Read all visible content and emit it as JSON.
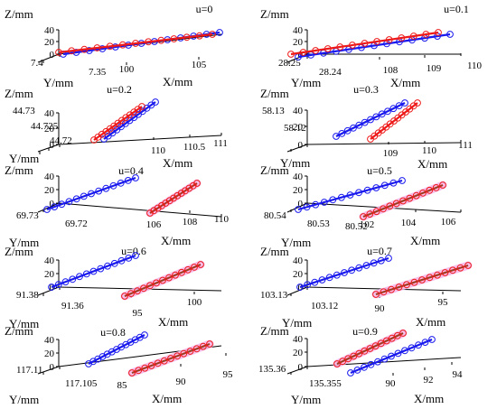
{
  "chart_data": [
    {
      "type": "line3d",
      "title": "u=0",
      "xlabel": "X/mm",
      "ylabel": "Y/mm",
      "zlabel": "Z/mm",
      "x_ticks": [
        "100",
        "105"
      ],
      "y_ticks": [
        "7.4",
        "7.35"
      ],
      "z_ticks": [
        "40",
        "20",
        "0"
      ],
      "series": [
        {
          "color": "#1a1aee",
          "x": [
            97,
            106.5
          ],
          "y": [
            7.375,
            7.375
          ],
          "z": [
            0,
            40
          ]
        },
        {
          "color": "#ee1a1a",
          "x": [
            96,
            106
          ],
          "y": [
            7.4,
            7.4
          ],
          "z": [
            0,
            40
          ]
        }
      ]
    },
    {
      "type": "line3d",
      "title": "u=0.1",
      "xlabel": "X/mm",
      "ylabel": "Y/mm",
      "zlabel": "Z/mm",
      "x_ticks": [
        "108",
        "109",
        "110"
      ],
      "y_ticks": [
        "28.25",
        "28.24"
      ],
      "z_ticks": [
        "40",
        "20",
        "0"
      ],
      "series": [
        {
          "color": "#1a1aee",
          "x": [
            106,
            109
          ],
          "y": [
            28.245,
            28.245
          ],
          "z": [
            0,
            40
          ]
        },
        {
          "color": "#ee1a1a",
          "x": [
            105.5,
            108.5
          ],
          "y": [
            28.25,
            28.25
          ],
          "z": [
            0,
            40
          ]
        }
      ]
    },
    {
      "type": "line3d",
      "title": "u=0.2",
      "xlabel": "X/mm",
      "ylabel": "Y/mm",
      "zlabel": "Z/mm",
      "x_ticks": [
        "110",
        "110.5",
        "111"
      ],
      "y_ticks": [
        "44.73",
        "44.725",
        "44.72"
      ],
      "z_ticks": [
        "40",
        "20",
        "0"
      ],
      "series": [
        {
          "color": "#1a1aee",
          "x": [
            109.9,
            110.5
          ],
          "y": [
            44.722,
            44.722
          ],
          "z": [
            0,
            40
          ]
        },
        {
          "color": "#ee1a1a",
          "x": [
            109.8,
            110.4
          ],
          "y": [
            44.725,
            44.725
          ],
          "z": [
            0,
            40
          ]
        }
      ]
    },
    {
      "type": "line3d",
      "title": "u=0.3",
      "xlabel": "X/mm",
      "ylabel": "Y/mm",
      "zlabel": "Z/mm",
      "x_ticks": [
        "109",
        "110",
        "111"
      ],
      "y_ticks": [
        "58.13",
        "58.12"
      ],
      "z_ticks": [
        "40",
        "20",
        "0"
      ],
      "series": [
        {
          "color": "#1a1aee",
          "x": [
            108,
            109.3
          ],
          "y": [
            58.125,
            58.125
          ],
          "z": [
            0,
            40
          ]
        },
        {
          "color": "#ee1a1a",
          "x": [
            108.6,
            109.9
          ],
          "y": [
            58.12,
            58.12
          ],
          "z": [
            0,
            40
          ]
        }
      ]
    },
    {
      "type": "line3d",
      "title": "u=0.4",
      "xlabel": "X/mm",
      "ylabel": "Y/mm",
      "zlabel": "Z/mm",
      "x_ticks": [
        "106",
        "108",
        "110"
      ],
      "y_ticks": [
        "69.73",
        "69.72"
      ],
      "z_ticks": [
        "40",
        "20",
        "0"
      ],
      "series": [
        {
          "color": "#1a1aee",
          "x": [
            102,
            105.5
          ],
          "y": [
            69.728,
            69.728
          ],
          "z": [
            0,
            40
          ]
        },
        {
          "color": "#ee1a1a",
          "x": [
            105.5,
            108.5
          ],
          "y": [
            69.72,
            69.72
          ],
          "z": [
            0,
            40
          ]
        }
      ]
    },
    {
      "type": "line3d",
      "title": "u=0.5",
      "xlabel": "X/mm",
      "ylabel": "Y/mm",
      "zlabel": "Z/mm",
      "x_ticks": [
        "102",
        "104",
        "106"
      ],
      "y_ticks": [
        "80.54",
        "80.53",
        "80.52"
      ],
      "z_ticks": [
        "40",
        "20",
        "0"
      ],
      "series": [
        {
          "color": "#1a1aee",
          "x": [
            98.5,
            102.5
          ],
          "y": [
            80.535,
            80.535
          ],
          "z": [
            0,
            40
          ]
        },
        {
          "color": "#ee1a1a",
          "x": [
            102,
            106
          ],
          "y": [
            80.52,
            80.52
          ],
          "z": [
            0,
            40
          ]
        }
      ]
    },
    {
      "type": "line3d",
      "title": "u=0.6",
      "xlabel": "X/mm",
      "ylabel": "Y/mm",
      "zlabel": "Z/mm",
      "x_ticks": [
        "95",
        "100"
      ],
      "y_ticks": [
        "91.38",
        "91.36"
      ],
      "z_ticks": [
        "40",
        "20",
        "0"
      ],
      "series": [
        {
          "color": "#1a1aee",
          "x": [
            88,
            96
          ],
          "y": [
            91.375,
            91.375
          ],
          "z": [
            0,
            40
          ]
        },
        {
          "color": "#ee1a1a",
          "x": [
            95,
            102
          ],
          "y": [
            91.36,
            91.36
          ],
          "z": [
            0,
            40
          ]
        }
      ]
    },
    {
      "type": "line3d",
      "title": "u=0.7",
      "xlabel": "X/mm",
      "ylabel": "Y/mm",
      "zlabel": "Z/mm",
      "x_ticks": [
        "90",
        "95"
      ],
      "y_ticks": [
        "103.13",
        "103.12"
      ],
      "z_ticks": [
        "40",
        "20",
        "0"
      ],
      "series": [
        {
          "color": "#1a1aee",
          "x": [
            84,
            92
          ],
          "y": [
            103.128,
            103.128
          ],
          "z": [
            0,
            40
          ]
        },
        {
          "color": "#ee1a1a",
          "x": [
            90,
            98.5
          ],
          "y": [
            103.12,
            103.12
          ],
          "z": [
            0,
            40
          ]
        }
      ]
    },
    {
      "type": "line3d",
      "title": "u=0.8",
      "xlabel": "X/mm",
      "ylabel": "Y/mm",
      "zlabel": "Z/mm",
      "x_ticks": [
        "85",
        "90",
        "95"
      ],
      "y_ticks": [
        "117.11",
        "117.105"
      ],
      "z_ticks": [
        "40",
        "20",
        "0"
      ],
      "series": [
        {
          "color": "#1a1aee",
          "x": [
            84.5,
            89
          ],
          "y": [
            117.109,
            117.109
          ],
          "z": [
            0,
            40
          ]
        },
        {
          "color": "#ee1a1a",
          "x": [
            86,
            93
          ],
          "y": [
            117.105,
            117.105
          ],
          "z": [
            0,
            40
          ]
        }
      ]
    },
    {
      "type": "line3d",
      "title": "u=0.9",
      "xlabel": "X/mm",
      "ylabel": "Y/mm",
      "zlabel": "Z/mm",
      "x_ticks": [
        "90",
        "92",
        "94"
      ],
      "y_ticks": [
        "135.36",
        "135.355"
      ],
      "z_ticks": [
        "40",
        "20",
        "0"
      ],
      "series": [
        {
          "color": "#1a1aee",
          "x": [
            88,
            93
          ],
          "y": [
            135.355,
            135.355
          ],
          "z": [
            0,
            40
          ]
        },
        {
          "color": "#ee1a1a",
          "x": [
            86,
            90.5
          ],
          "y": [
            135.358,
            135.358
          ],
          "z": [
            0,
            40
          ]
        }
      ]
    }
  ]
}
